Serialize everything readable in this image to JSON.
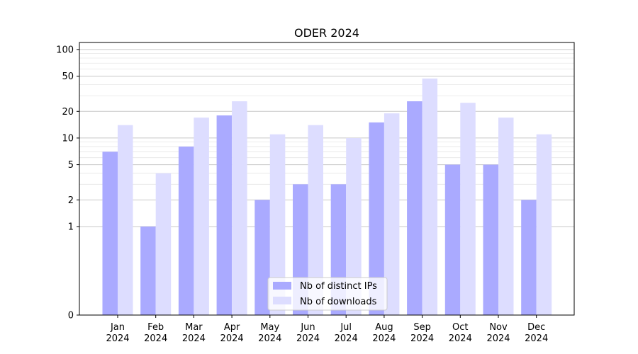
{
  "chart_data": {
    "type": "bar",
    "title": "ODER 2024",
    "xlabel": "",
    "ylabel": "",
    "y_scale": "symlog",
    "ylim": [
      0,
      120
    ],
    "grid": "horizontal",
    "legend_position": "bottom-center",
    "categories": [
      "Jan\n2024",
      "Feb\n2024",
      "Mar\n2024",
      "Apr\n2024",
      "May\n2024",
      "Jun\n2024",
      "Jul\n2024",
      "Aug\n2024",
      "Sep\n2024",
      "Oct\n2024",
      "Nov\n2024",
      "Dec\n2024"
    ],
    "y_ticks": [
      0,
      1,
      2,
      5,
      10,
      20,
      50,
      100
    ],
    "y_tick_labels": [
      "0",
      "1",
      "2",
      "5",
      "10",
      "20",
      "50",
      "100"
    ],
    "series": [
      {
        "name": "Nb of distinct IPs",
        "color": "#aaaaff",
        "values": [
          7,
          1,
          8,
          18,
          2,
          3,
          3,
          15,
          26,
          5,
          5,
          2
        ]
      },
      {
        "name": "Nb of downloads",
        "color": "#ddddff",
        "values": [
          14,
          4,
          17,
          26,
          11,
          14,
          10,
          19,
          47,
          25,
          17,
          11
        ]
      }
    ]
  }
}
